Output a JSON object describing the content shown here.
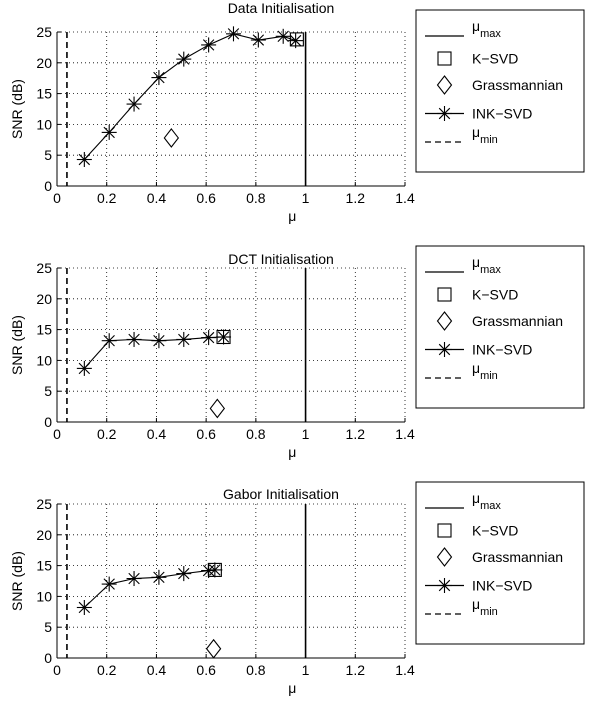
{
  "figure": {
    "ylabel": "SNR (dB)",
    "xlabel": "μ"
  },
  "legend_labels": {
    "mu_max_base": "μ",
    "mu_max_sub": "max",
    "ksvd": "K−SVD",
    "grass": "Grassmannian",
    "ink": "INK−SVD",
    "mu_min_base": "μ",
    "mu_min_sub": "min"
  },
  "chart_data": [
    {
      "type": "line",
      "title": "Data Initialisation",
      "xlabel": "μ",
      "ylabel": "SNR (dB)",
      "xlim": [
        0,
        1.4
      ],
      "ylim": [
        0,
        25
      ],
      "xticks": [
        "0",
        "0.2",
        "0.4",
        "0.6",
        "0.8",
        "1",
        "1.2",
        "1.4"
      ],
      "yticks": [
        "0",
        "5",
        "10",
        "15",
        "20",
        "25"
      ],
      "grid": true,
      "legend_position": "top-right",
      "mu_max": 1.0,
      "mu_min": 0.04,
      "series": [
        {
          "name": "K−SVD",
          "marker": "square",
          "x": [
            0.965
          ],
          "y": [
            23.8
          ]
        },
        {
          "name": "Grassmannian",
          "marker": "diamond",
          "x": [
            0.46
          ],
          "y": [
            7.8
          ]
        },
        {
          "name": "INK−SVD",
          "marker": "asterisk",
          "x": [
            0.11,
            0.21,
            0.31,
            0.41,
            0.51,
            0.61,
            0.71,
            0.81,
            0.91,
            0.96
          ],
          "y": [
            4.3,
            8.7,
            13.3,
            17.6,
            20.6,
            22.9,
            24.7,
            23.7,
            24.3,
            23.6
          ]
        }
      ]
    },
    {
      "type": "line",
      "title": "DCT Initialisation",
      "xlabel": "μ",
      "ylabel": "SNR (dB)",
      "xlim": [
        0,
        1.4
      ],
      "ylim": [
        0,
        25
      ],
      "xticks": [
        "0",
        "0.2",
        "0.4",
        "0.6",
        "0.8",
        "1",
        "1.2",
        "1.4"
      ],
      "yticks": [
        "0",
        "5",
        "10",
        "15",
        "20",
        "25"
      ],
      "grid": true,
      "legend_position": "top-right",
      "mu_max": 1.0,
      "mu_min": 0.04,
      "series": [
        {
          "name": "K−SVD",
          "marker": "square",
          "x": [
            0.67
          ],
          "y": [
            13.8
          ]
        },
        {
          "name": "Grassmannian",
          "marker": "diamond",
          "x": [
            0.645
          ],
          "y": [
            2.2
          ]
        },
        {
          "name": "INK−SVD",
          "marker": "asterisk",
          "x": [
            0.11,
            0.21,
            0.31,
            0.41,
            0.51,
            0.61,
            0.67
          ],
          "y": [
            8.7,
            13.2,
            13.4,
            13.2,
            13.4,
            13.7,
            13.8
          ]
        }
      ]
    },
    {
      "type": "line",
      "title": "Gabor Initialisation",
      "xlabel": "μ",
      "ylabel": "SNR (dB)",
      "xlim": [
        0,
        1.4
      ],
      "ylim": [
        0,
        25
      ],
      "xticks": [
        "0",
        "0.2",
        "0.4",
        "0.6",
        "0.8",
        "1",
        "1.2",
        "1.4"
      ],
      "yticks": [
        "0",
        "5",
        "10",
        "15",
        "20",
        "25"
      ],
      "grid": true,
      "legend_position": "top-right",
      "mu_max": 1.0,
      "mu_min": 0.04,
      "series": [
        {
          "name": "K−SVD",
          "marker": "square",
          "x": [
            0.635
          ],
          "y": [
            14.3
          ]
        },
        {
          "name": "Grassmannian",
          "marker": "diamond",
          "x": [
            0.63
          ],
          "y": [
            1.5
          ]
        },
        {
          "name": "INK−SVD",
          "marker": "asterisk",
          "x": [
            0.11,
            0.21,
            0.31,
            0.41,
            0.51,
            0.61,
            0.635
          ],
          "y": [
            8.2,
            12.0,
            12.9,
            13.1,
            13.7,
            14.2,
            14.3
          ]
        }
      ]
    }
  ]
}
